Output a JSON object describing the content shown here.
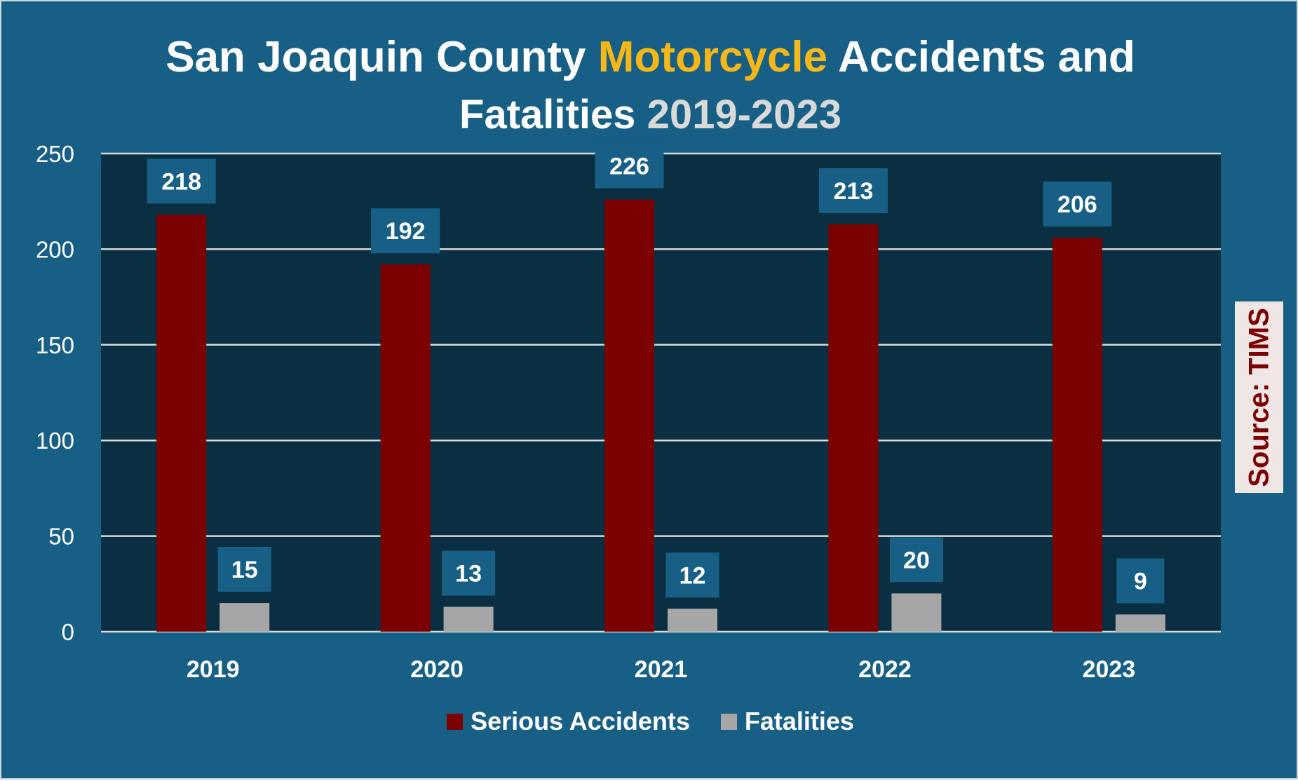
{
  "title": {
    "part1": "San Joaquin County ",
    "highlight": "Motorcycle",
    "part2": " Accidents and",
    "line2_main": "Fatalities ",
    "line2_years": "2019-2023"
  },
  "source_label": "Source: TIMS",
  "colors": {
    "background": "#175f84",
    "plot_area": "#0b2f42",
    "serious": "#7b0000",
    "fatalities": "#a6a6a6",
    "label_box": "#175f84",
    "highlight_gold": "#f7b718"
  },
  "chart_data": {
    "type": "bar",
    "title": "San Joaquin County Motorcycle Accidents and Fatalities 2019-2023",
    "categories": [
      "2019",
      "2020",
      "2021",
      "2022",
      "2023"
    ],
    "series": [
      {
        "name": "Serious Accidents",
        "values": [
          218,
          192,
          226,
          213,
          206
        ]
      },
      {
        "name": "Fatalities",
        "values": [
          15,
          13,
          12,
          20,
          9
        ]
      }
    ],
    "ylim": [
      0,
      250
    ],
    "yticks": [
      0,
      50,
      100,
      150,
      200,
      250
    ],
    "xlabel": "",
    "ylabel": "",
    "grid": true,
    "legend_position": "bottom"
  }
}
